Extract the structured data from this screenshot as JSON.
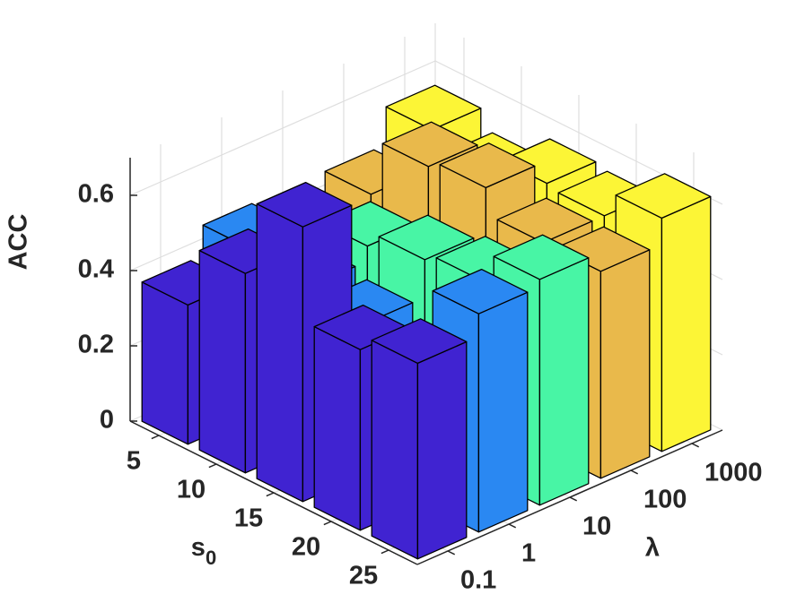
{
  "chart_data": {
    "type": "bar3",
    "zlabel": "ACC",
    "xlabel": "s",
    "xlabel_subscript": "0",
    "ylabel": "λ",
    "x_categories": [
      "5",
      "10",
      "15",
      "20",
      "25"
    ],
    "y_categories": [
      "0.1",
      "1",
      "10",
      "100",
      "1000"
    ],
    "series": [
      {
        "color": "#4023d1",
        "values": [
          0.37,
          0.53,
          0.73,
          0.48,
          0.52
        ]
      },
      {
        "color": "#2a88f2",
        "values": [
          0.45,
          0.42,
          0.4,
          0.33,
          0.58
        ]
      },
      {
        "color": "#48f5a5",
        "values": [
          0.4,
          0.46,
          0.5,
          0.52,
          0.6
        ]
      },
      {
        "color": "#e9b94b",
        "values": [
          0.45,
          0.6,
          0.62,
          0.55,
          0.55
        ]
      },
      {
        "color": "#fcf536",
        "values": [
          0.55,
          0.5,
          0.56,
          0.55,
          0.62
        ]
      }
    ],
    "zlim": [
      0,
      0.7
    ],
    "zticks": [
      0,
      0.2,
      0.4,
      0.6
    ],
    "grid": true
  }
}
